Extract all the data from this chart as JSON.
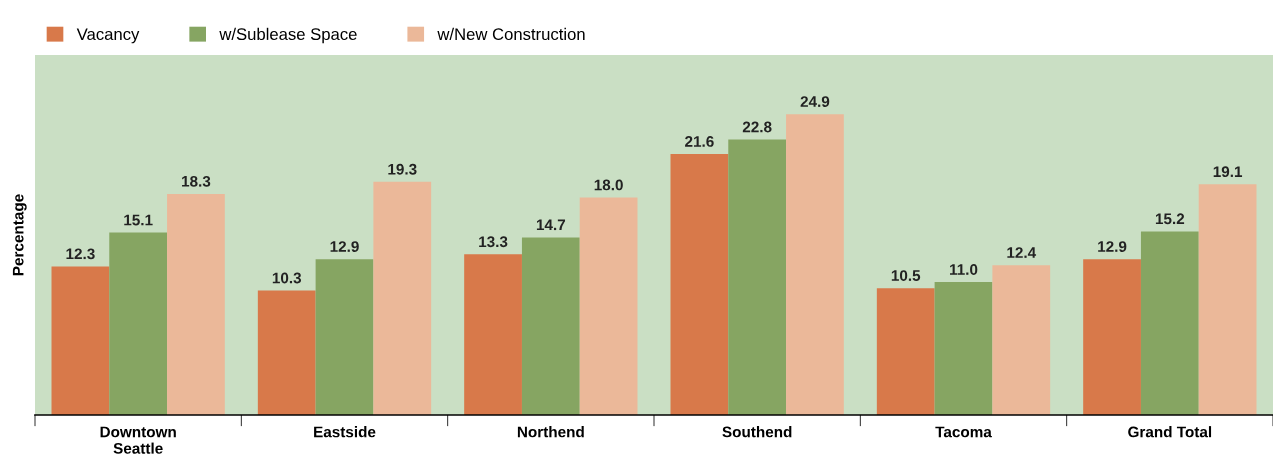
{
  "chart_data": {
    "type": "bar",
    "ylabel": "Percentage",
    "categories": [
      "Downtown\nSeattle",
      "Eastside",
      "Northend",
      "Southend",
      "Tacoma",
      "Grand Total"
    ],
    "series": [
      {
        "name": "Vacancy",
        "color": "#d8794a",
        "values": [
          12.3,
          10.3,
          13.3,
          21.6,
          10.5,
          12.9
        ],
        "value_labels": [
          "12.3",
          "10.3",
          "13.3",
          "21.6",
          "10.5",
          "12.9"
        ]
      },
      {
        "name": "w/Sublease Space",
        "color": "#86a562",
        "values": [
          15.1,
          12.9,
          14.7,
          22.8,
          11.0,
          15.2
        ],
        "value_labels": [
          "15.1",
          "12.9",
          "14.7",
          "22.8",
          "11.0",
          "15.2"
        ]
      },
      {
        "name": "w/New Construction",
        "color": "#ebb899",
        "values": [
          18.3,
          19.3,
          18.0,
          24.9,
          12.4,
          19.1
        ],
        "value_labels": [
          "18.3",
          "19.3",
          "18.0",
          "24.9",
          "12.4",
          "19.1"
        ]
      }
    ],
    "ylim": [
      0,
      29.8
    ],
    "tick_labels": "x",
    "legend": "top left",
    "grid": false
  }
}
